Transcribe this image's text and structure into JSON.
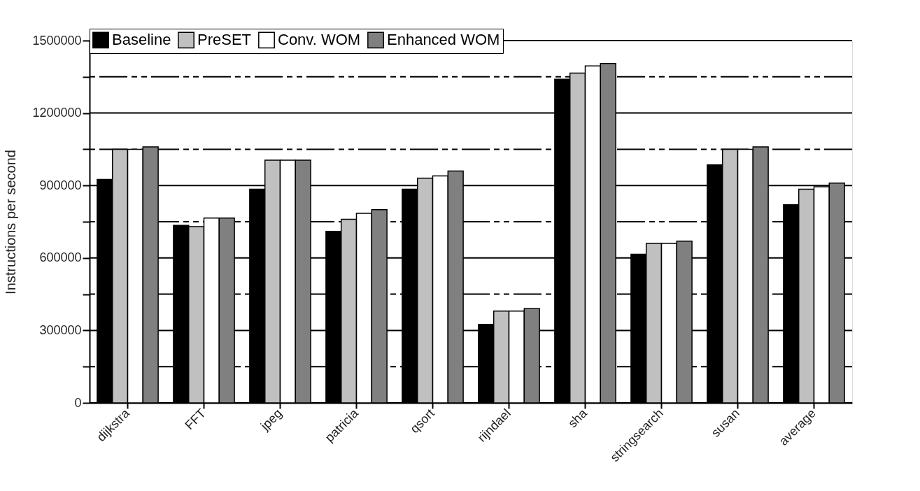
{
  "chart_data": {
    "type": "bar",
    "ylabel": "Instructions per second",
    "categories": [
      "dijkstra",
      "FFT",
      "jpeg",
      "patricia",
      "qsort",
      "rijndael",
      "sha",
      "stringsearch",
      "susan",
      "average"
    ],
    "series": [
      {
        "name": "Baseline",
        "color": "#000000",
        "values": [
          925000,
          735000,
          885000,
          710000,
          885000,
          325000,
          1340000,
          615000,
          985000,
          820000
        ]
      },
      {
        "name": "PreSET",
        "color": "#c0c0c0",
        "values": [
          1050000,
          730000,
          1005000,
          760000,
          930000,
          380000,
          1365000,
          660000,
          1050000,
          885000
        ]
      },
      {
        "name": "Conv. WOM",
        "color": "#ffffff",
        "values": [
          1050000,
          765000,
          1005000,
          785000,
          940000,
          380000,
          1395000,
          660000,
          1050000,
          895000
        ]
      },
      {
        "name": "Enhanced WOM",
        "color": "#808080",
        "values": [
          1060000,
          765000,
          1005000,
          800000,
          960000,
          390000,
          1405000,
          670000,
          1060000,
          910000
        ]
      }
    ],
    "ylim": [
      0,
      1500000
    ],
    "yticks": [
      0,
      {
        "value": 150000,
        "label": null
      },
      300000,
      {
        "value": 450000,
        "label": null
      },
      600000,
      {
        "value": 750000,
        "label": null
      },
      900000,
      {
        "value": 1050000,
        "label": null
      },
      1200000,
      {
        "value": 1350000,
        "label": null
      },
      1500000
    ],
    "grid": true,
    "legend": "top"
  }
}
